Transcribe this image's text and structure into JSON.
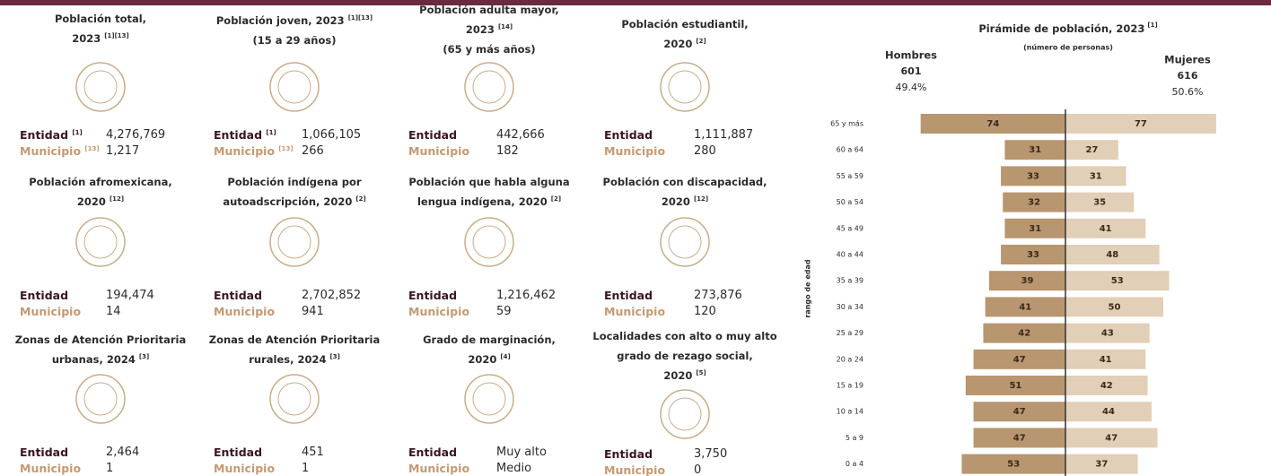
{
  "cards": [
    {
      "lines": [
        {
          "text": "Población total,"
        },
        {
          "text": "2023",
          "ref": "[1][13]"
        }
      ],
      "entity": {
        "label": "Entidad",
        "ref": "[1]",
        "value": "4,276,769"
      },
      "municipality": {
        "label": "Municipio",
        "ref": "[13]",
        "value": "1,217"
      }
    },
    {
      "lines": [
        {
          "text": "Población joven, 2023",
          "ref": "[1][13]"
        },
        {
          "text": "(15 a 29 años)"
        }
      ],
      "entity": {
        "label": "Entidad",
        "ref": "[1]",
        "value": "1,066,105"
      },
      "municipality": {
        "label": "Municipio",
        "ref": "[13]",
        "value": "266"
      }
    },
    {
      "lines": [
        {
          "text": "Población adulta mayor,"
        },
        {
          "text": "2023",
          "ref": "[14]"
        },
        {
          "text": "(65 y más años)"
        }
      ],
      "entity": {
        "label": "Entidad",
        "value": "442,666"
      },
      "municipality": {
        "label": "Municipio",
        "value": "182"
      }
    },
    {
      "lines": [
        {
          "text": "Población estudiantil,"
        },
        {
          "text": "2020",
          "ref": "[2]"
        }
      ],
      "entity": {
        "label": "Entidad",
        "value": "1,111,887"
      },
      "municipality": {
        "label": "Municipio",
        "value": "280"
      }
    },
    {
      "lines": [
        {
          "text": "Población afromexicana,"
        },
        {
          "text": "2020",
          "ref": "[12]"
        }
      ],
      "entity": {
        "label": "Entidad",
        "value": "194,474"
      },
      "municipality": {
        "label": "Municipio",
        "value": "14"
      }
    },
    {
      "lines": [
        {
          "text": "Población indígena por"
        },
        {
          "text": "autoadscripción, 2020",
          "ref": "[2]"
        }
      ],
      "entity": {
        "label": "Entidad",
        "value": "2,702,852"
      },
      "municipality": {
        "label": "Municipio",
        "value": "941"
      }
    },
    {
      "lines": [
        {
          "text": "Población que habla alguna"
        },
        {
          "text": "lengua indígena, 2020",
          "ref": "[2]"
        }
      ],
      "entity": {
        "label": "Entidad",
        "value": "1,216,462"
      },
      "municipality": {
        "label": "Municipio",
        "value": "59"
      }
    },
    {
      "lines": [
        {
          "text": "Población con discapacidad,"
        },
        {
          "text": "2020",
          "ref": "[12]"
        }
      ],
      "entity": {
        "label": "Entidad",
        "value": "273,876"
      },
      "municipality": {
        "label": "Municipio",
        "value": "120"
      }
    },
    {
      "lines": [
        {
          "text": "Zonas de Atención Prioritaria"
        },
        {
          "text": "urbanas, 2024",
          "ref": "[3]"
        }
      ],
      "entity": {
        "label": "Entidad",
        "value": "2,464"
      },
      "municipality": {
        "label": "Municipio",
        "value": "1"
      }
    },
    {
      "lines": [
        {
          "text": "Zonas de Atención Prioritaria"
        },
        {
          "text": "rurales, 2024",
          "ref": "[3]"
        }
      ],
      "entity": {
        "label": "Entidad",
        "value": "451"
      },
      "municipality": {
        "label": "Municipio",
        "value": "1"
      }
    },
    {
      "lines": [
        {
          "text": "Grado de marginación,"
        },
        {
          "text": "2020",
          "ref": "[4]"
        }
      ],
      "entity": {
        "label": "Entidad",
        "value": "Muy alto"
      },
      "municipality": {
        "label": "Municipio",
        "value": "Medio"
      }
    },
    {
      "lines": [
        {
          "text": "Localidades con alto o muy alto"
        },
        {
          "text": "grado de rezago social,"
        },
        {
          "text": "2020",
          "ref": "[5]"
        }
      ],
      "entity": {
        "label": "Entidad",
        "value": "3,750"
      },
      "municipality": {
        "label": "Municipio",
        "value": "0"
      }
    }
  ],
  "pyramid": {
    "title": "Pirámide de población, 2023",
    "title_ref": "[1]",
    "subtitle": "(número de personas)",
    "y_label": "rango de edad",
    "left": {
      "name": "Hombres",
      "total": "601",
      "share": "49.4%",
      "color": "#b8966f"
    },
    "right": {
      "name": "Mujeres",
      "total": "616",
      "share": "50.6%",
      "color": "#e2cfb7"
    },
    "categories": [
      "65 y más",
      "60 a 64",
      "55 a 59",
      "50 a 54",
      "45 a 49",
      "40 a 44",
      "35 a 39",
      "30 a 34",
      "25 a 29",
      "20 a 24",
      "15 a 19",
      "10 a 14",
      "5 a 9",
      "0 a 4"
    ],
    "men": [
      74,
      31,
      33,
      32,
      31,
      33,
      39,
      41,
      42,
      47,
      51,
      47,
      47,
      53
    ],
    "women": [
      77,
      27,
      31,
      35,
      41,
      48,
      53,
      50,
      43,
      41,
      42,
      44,
      47,
      37
    ]
  }
}
